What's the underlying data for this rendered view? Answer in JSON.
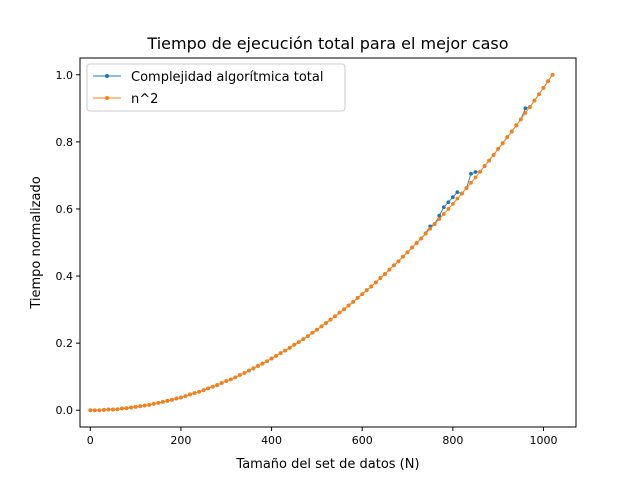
{
  "chart_data": {
    "type": "line",
    "title": "Tiempo de ejecución total para el mejor caso",
    "xlabel": "Tamaño del set de datos (N)",
    "ylabel": "Tiempo normalizado",
    "xlim": [
      -22.7,
      1071.7
    ],
    "ylim": [
      -0.05,
      1.05
    ],
    "xticks": [
      {
        "value": 0,
        "label": "0"
      },
      {
        "value": 200,
        "label": "200"
      },
      {
        "value": 400,
        "label": "400"
      },
      {
        "value": 600,
        "label": "600"
      },
      {
        "value": 800,
        "label": "800"
      },
      {
        "value": 1000,
        "label": "1000"
      }
    ],
    "yticks": [
      {
        "value": 0.0,
        "label": "0.0"
      },
      {
        "value": 0.2,
        "label": "0.2"
      },
      {
        "value": 0.4,
        "label": "0.4"
      },
      {
        "value": 0.6,
        "label": "0.6"
      },
      {
        "value": 0.8,
        "label": "0.8"
      },
      {
        "value": 1.0,
        "label": "1.0"
      }
    ],
    "grid": false,
    "legend": {
      "position": "top-left"
    },
    "series": [
      {
        "name": "Complejidad algorítmica total",
        "color": "#1f77b4",
        "marker": "circle",
        "x": [
          0,
          10,
          20,
          30,
          40,
          50,
          60,
          70,
          80,
          90,
          100,
          110,
          120,
          130,
          140,
          150,
          160,
          170,
          180,
          190,
          200,
          210,
          220,
          230,
          240,
          250,
          260,
          270,
          280,
          290,
          300,
          310,
          320,
          330,
          340,
          350,
          360,
          370,
          380,
          390,
          400,
          410,
          420,
          430,
          440,
          450,
          460,
          470,
          480,
          490,
          500,
          510,
          520,
          530,
          540,
          550,
          560,
          570,
          580,
          590,
          600,
          610,
          620,
          630,
          640,
          650,
          660,
          670,
          680,
          690,
          700,
          710,
          720,
          730,
          740,
          750,
          760,
          770,
          780,
          790,
          800,
          810,
          820,
          830,
          840,
          850,
          860,
          870,
          880,
          890,
          900,
          910,
          920,
          930,
          940,
          950,
          960,
          970,
          980,
          990,
          1000,
          1010,
          1020
        ],
        "y": [
          0.0,
          0.0,
          0.0,
          0.001,
          0.002,
          0.002,
          0.003,
          0.005,
          0.006,
          0.008,
          0.01,
          0.012,
          0.014,
          0.016,
          0.019,
          0.022,
          0.025,
          0.028,
          0.031,
          0.035,
          0.038,
          0.042,
          0.047,
          0.051,
          0.055,
          0.06,
          0.065,
          0.07,
          0.075,
          0.081,
          0.087,
          0.092,
          0.098,
          0.105,
          0.111,
          0.118,
          0.125,
          0.132,
          0.139,
          0.146,
          0.154,
          0.162,
          0.17,
          0.178,
          0.186,
          0.195,
          0.203,
          0.212,
          0.221,
          0.231,
          0.24,
          0.25,
          0.26,
          0.27,
          0.28,
          0.291,
          0.301,
          0.312,
          0.323,
          0.335,
          0.346,
          0.358,
          0.369,
          0.381,
          0.394,
          0.406,
          0.419,
          0.432,
          0.444,
          0.458,
          0.471,
          0.485,
          0.498,
          0.512,
          0.527,
          0.548,
          0.555,
          0.58,
          0.605,
          0.62,
          0.635,
          0.65,
          0.646,
          0.662,
          0.705,
          0.71,
          0.711,
          0.728,
          0.744,
          0.761,
          0.779,
          0.796,
          0.814,
          0.831,
          0.849,
          0.867,
          0.9,
          0.904,
          0.923,
          0.942,
          0.961,
          0.981,
          1.0
        ]
      },
      {
        "name": "n^2",
        "color": "#ff7f0e",
        "marker": "circle",
        "x": [
          0,
          10,
          20,
          30,
          40,
          50,
          60,
          70,
          80,
          90,
          100,
          110,
          120,
          130,
          140,
          150,
          160,
          170,
          180,
          190,
          200,
          210,
          220,
          230,
          240,
          250,
          260,
          270,
          280,
          290,
          300,
          310,
          320,
          330,
          340,
          350,
          360,
          370,
          380,
          390,
          400,
          410,
          420,
          430,
          440,
          450,
          460,
          470,
          480,
          490,
          500,
          510,
          520,
          530,
          540,
          550,
          560,
          570,
          580,
          590,
          600,
          610,
          620,
          630,
          640,
          650,
          660,
          670,
          680,
          690,
          700,
          710,
          720,
          730,
          740,
          750,
          760,
          770,
          780,
          790,
          800,
          810,
          820,
          830,
          840,
          850,
          860,
          870,
          880,
          890,
          900,
          910,
          920,
          930,
          940,
          950,
          960,
          970,
          980,
          990,
          1000,
          1010,
          1020
        ],
        "y": [
          0.0,
          0.0,
          0.0,
          0.001,
          0.002,
          0.002,
          0.003,
          0.005,
          0.006,
          0.008,
          0.01,
          0.012,
          0.014,
          0.016,
          0.019,
          0.022,
          0.025,
          0.028,
          0.031,
          0.035,
          0.038,
          0.042,
          0.047,
          0.051,
          0.055,
          0.06,
          0.065,
          0.07,
          0.075,
          0.081,
          0.087,
          0.092,
          0.098,
          0.105,
          0.111,
          0.118,
          0.125,
          0.132,
          0.139,
          0.146,
          0.154,
          0.162,
          0.17,
          0.178,
          0.186,
          0.195,
          0.203,
          0.212,
          0.221,
          0.231,
          0.24,
          0.25,
          0.26,
          0.27,
          0.28,
          0.291,
          0.301,
          0.312,
          0.323,
          0.335,
          0.346,
          0.358,
          0.369,
          0.381,
          0.394,
          0.406,
          0.419,
          0.432,
          0.444,
          0.458,
          0.471,
          0.485,
          0.498,
          0.512,
          0.526,
          0.541,
          0.555,
          0.57,
          0.585,
          0.6,
          0.615,
          0.631,
          0.646,
          0.662,
          0.678,
          0.694,
          0.711,
          0.728,
          0.744,
          0.761,
          0.779,
          0.796,
          0.814,
          0.831,
          0.849,
          0.867,
          0.886,
          0.904,
          0.923,
          0.942,
          0.961,
          0.981,
          1.0
        ]
      }
    ]
  }
}
